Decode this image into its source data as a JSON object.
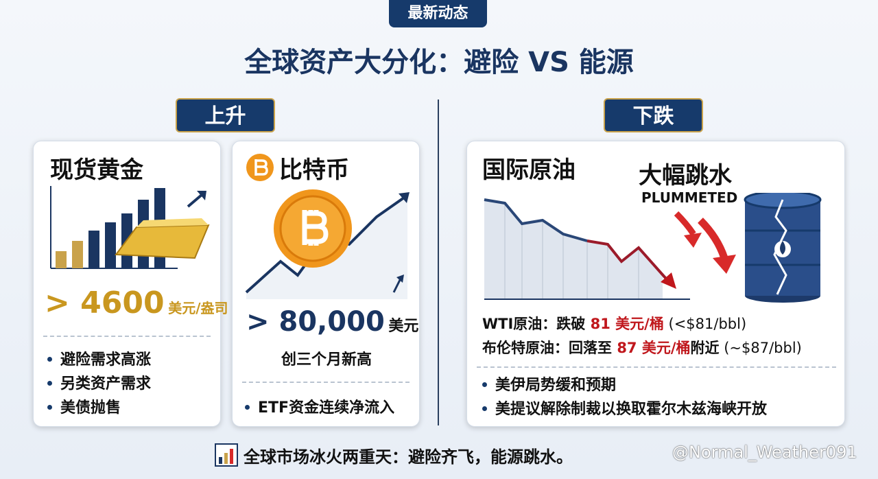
{
  "header": {
    "badge": "最新动态",
    "title": "全球资产大分化：避险 VS 能源"
  },
  "rising": {
    "label": "上升",
    "cards": [
      {
        "title": "现货黄金",
        "value": "> 4600",
        "unit": "美元/盎司",
        "bullets": [
          "避险需求高涨",
          "另类资产需求",
          "美债抛售"
        ]
      },
      {
        "title": "比特币",
        "value": "> 80,000",
        "unit": "美元",
        "note": "创三个月新高",
        "bullets": [
          "ETF资金连续净流入"
        ]
      }
    ]
  },
  "falling": {
    "label": "下跌",
    "card": {
      "title": "国际原油",
      "callout": "大幅跳水",
      "callout_en": "PLUMMETED",
      "lines": [
        [
          "WTI原油：跌破 ",
          "81 美元/桶",
          " (<$81/bbl)"
        ],
        [
          "布伦特原油：回落至 ",
          "87 美元/桶",
          "附近",
          " (~$87/bbl)"
        ]
      ],
      "bullets": [
        "美伊局势缓和预期",
        "美提议解除制裁以换取霍尔木兹海峡开放"
      ]
    }
  },
  "footer": {
    "summary": "全球市场冰火两重天：避险齐飞，能源跳水。",
    "watermark": "@Normal_Weather091"
  }
}
